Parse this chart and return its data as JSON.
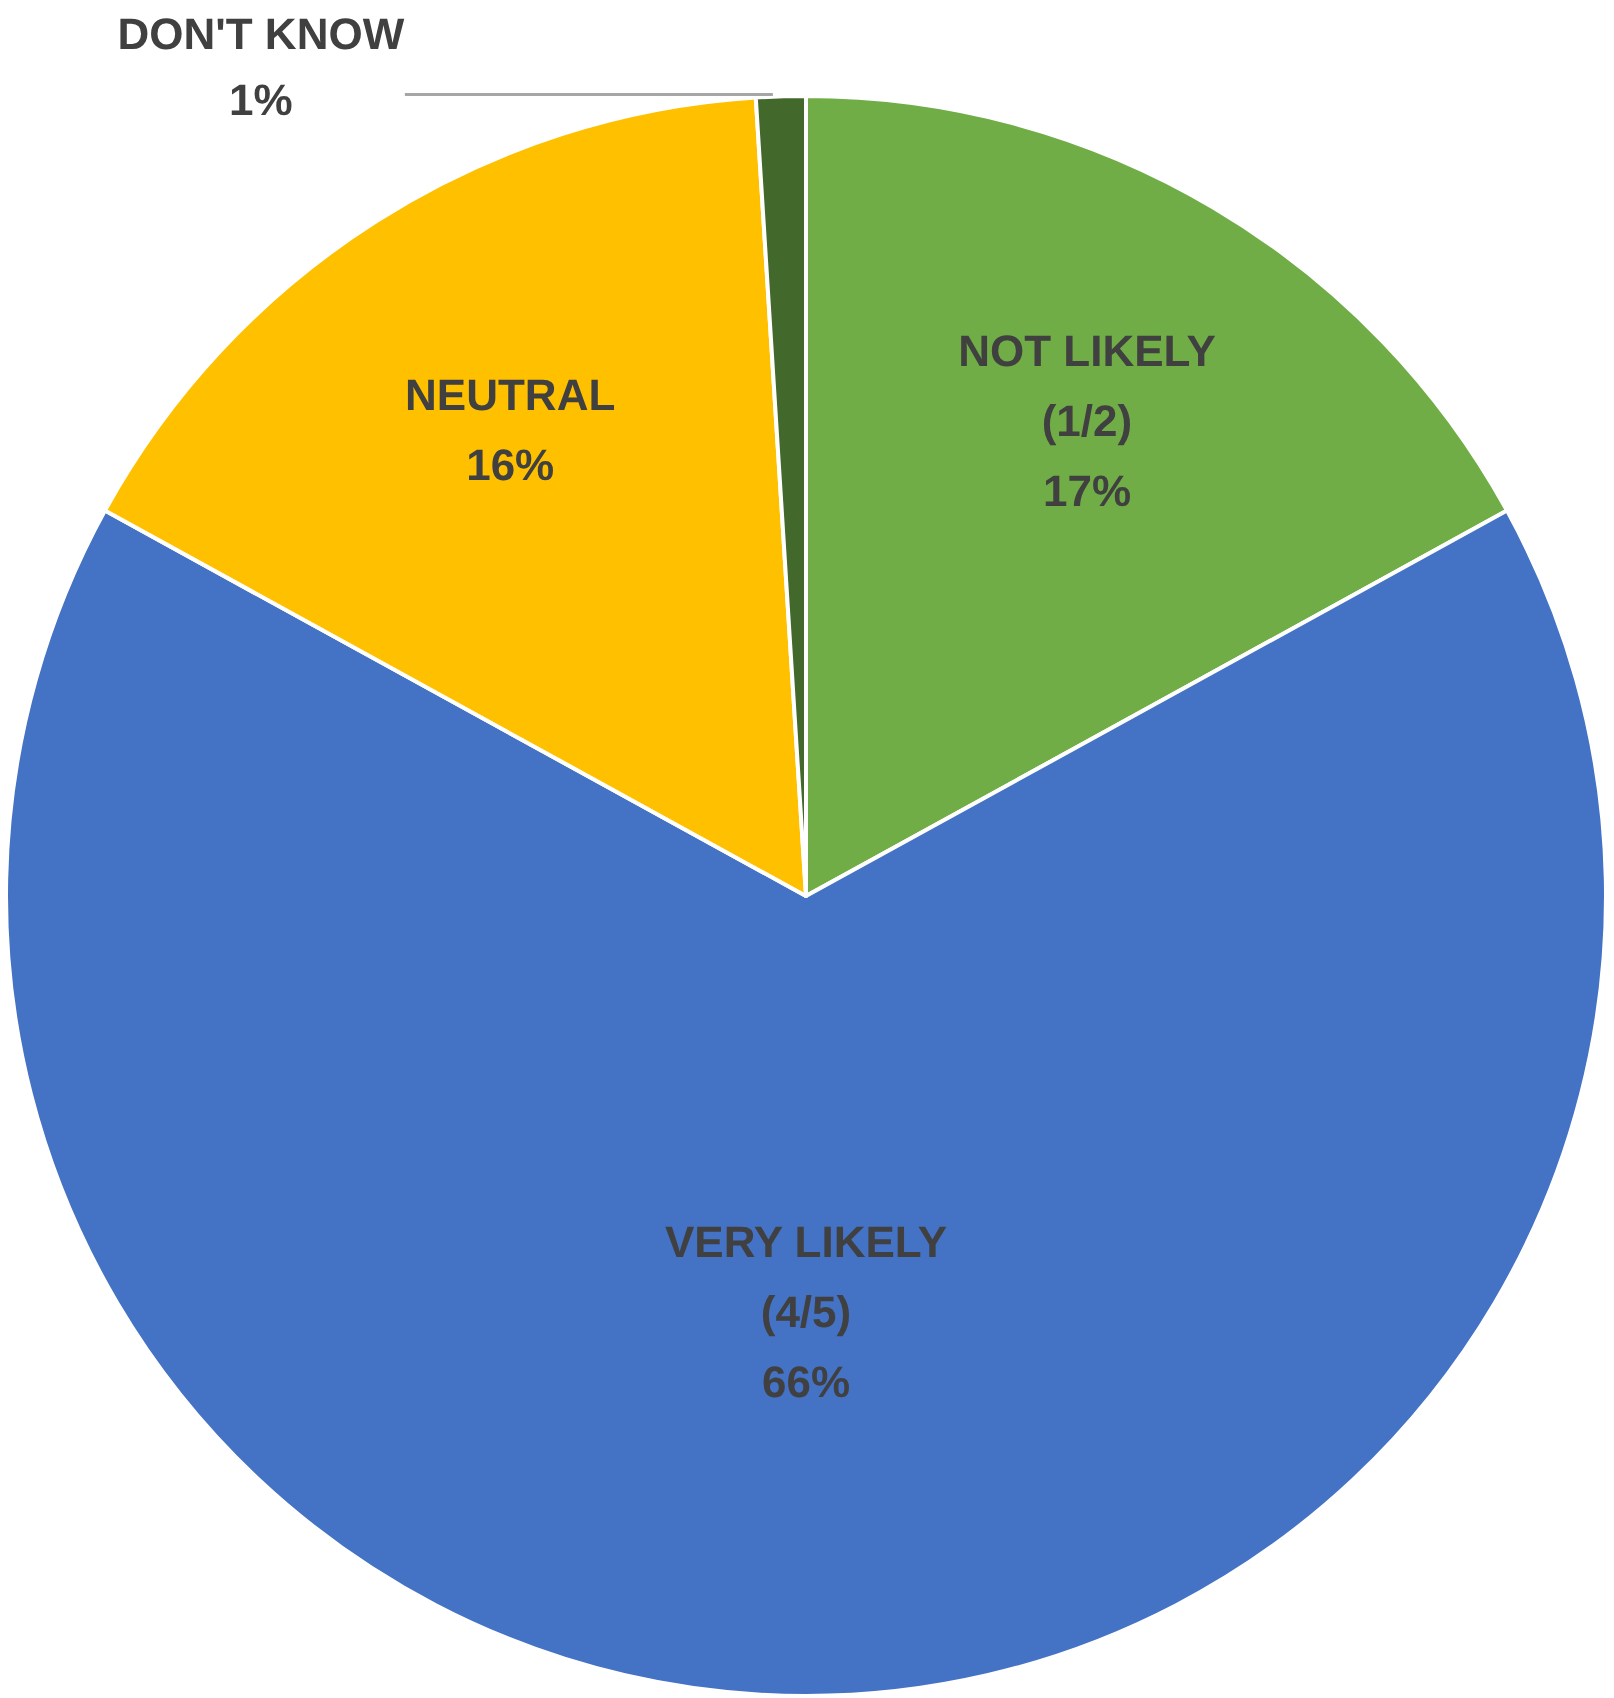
{
  "chart_data": {
    "type": "pie",
    "categories": [
      "NOT LIKELY (1/2)",
      "VERY LIKELY (4/5)",
      "NEUTRAL",
      "DON'T KNOW"
    ],
    "values": [
      17,
      66,
      16,
      1
    ],
    "value_labels": [
      "17%",
      "66%",
      "16%",
      "1%"
    ],
    "colors": [
      "#70ad47",
      "#4472c4",
      "#ffc000",
      "#43682b"
    ],
    "legend": false
  }
}
